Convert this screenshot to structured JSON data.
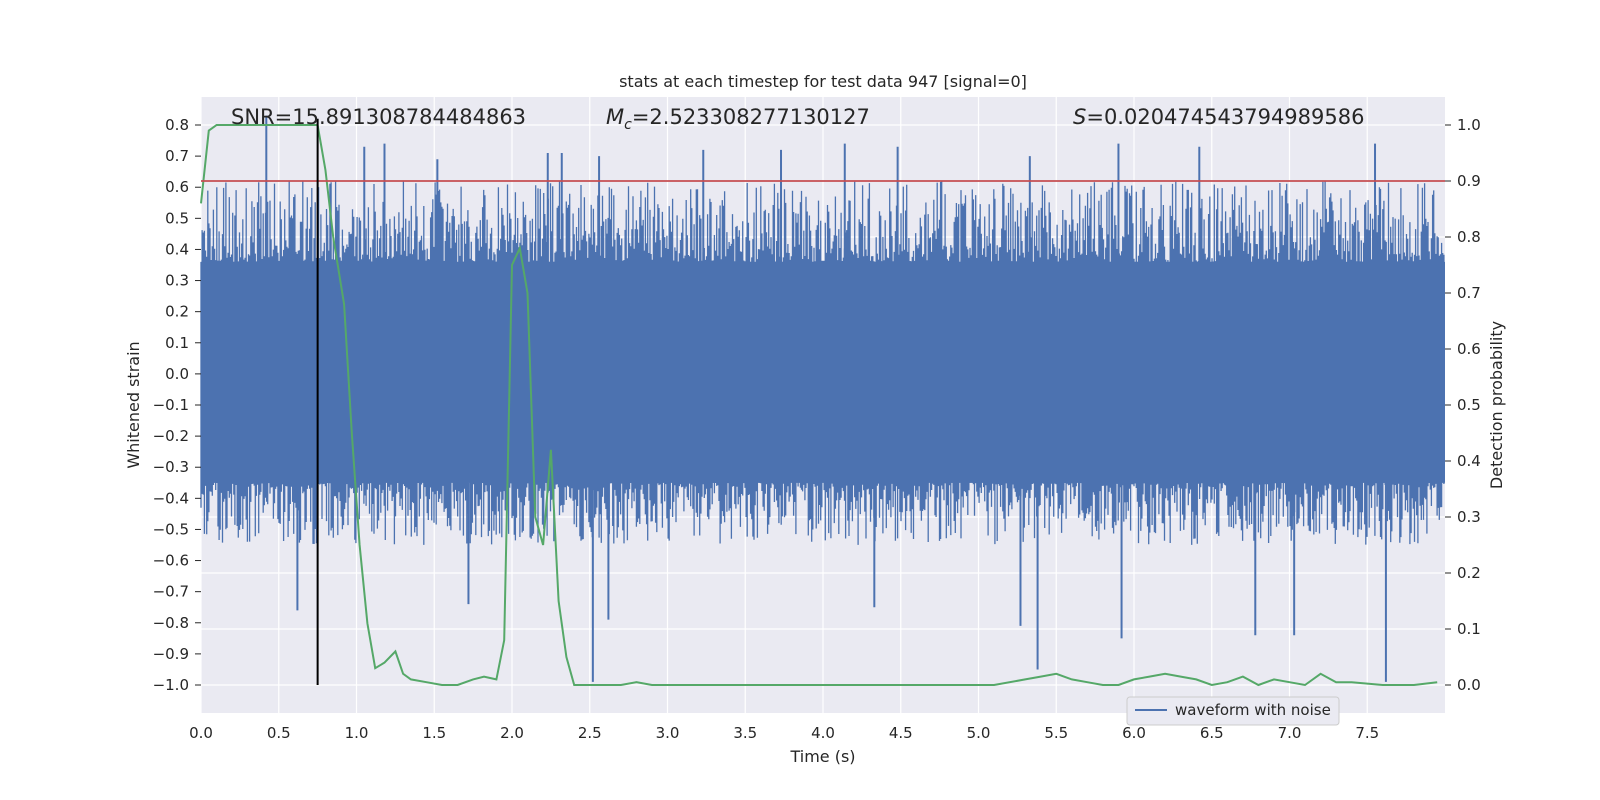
{
  "chart_data": {
    "type": "line",
    "title": "stats at each timestep for test data 947 [signal=0]",
    "xlabel": "Time (s)",
    "ylabel_left": "Whitened strain",
    "ylabel_right": "Detection probability",
    "xlim": [
      0.0,
      8.0
    ],
    "ylim_left": [
      -1.09,
      0.89
    ],
    "ylim_right": [
      -0.05,
      1.05
    ],
    "xticks": [
      "0.0",
      "0.5",
      "1.0",
      "1.5",
      "2.0",
      "2.5",
      "3.0",
      "3.5",
      "4.0",
      "4.5",
      "5.0",
      "5.5",
      "6.0",
      "6.5",
      "7.0",
      "7.5"
    ],
    "yticks_left": [
      "0.8",
      "0.7",
      "0.6",
      "0.5",
      "0.4",
      "0.3",
      "0.2",
      "0.1",
      "0.0",
      "−0.1",
      "−0.2",
      "−0.3",
      "−0.4",
      "−0.5",
      "−0.6",
      "−0.7",
      "−0.8",
      "−0.9",
      "−1.0"
    ],
    "yticks_right": [
      "1.0",
      "0.9",
      "0.8",
      "0.7",
      "0.6",
      "0.5",
      "0.4",
      "0.3",
      "0.2",
      "0.1",
      "0.0"
    ],
    "grid": true,
    "legend": {
      "position": "lower-right",
      "entries": [
        "waveform with noise"
      ]
    },
    "annotations": {
      "snr": "SNR=15.891308784484863",
      "mc_label": "M",
      "mc_sub": "c",
      "mc_value": "=2.523308277130127",
      "s_label": "S",
      "s_value": "=0.020474543794989586"
    },
    "threshold_right": 0.9,
    "marker_time": 0.75,
    "marker_range_left": [
      -1.0,
      0.82
    ],
    "waveform_band": {
      "core_range": [
        -0.35,
        0.36
      ],
      "typical_peak_range": [
        -0.55,
        0.62
      ]
    },
    "waveform_spikes": [
      {
        "x": 0.42,
        "y": 0.83
      },
      {
        "x": 1.05,
        "y": 0.73
      },
      {
        "x": 1.18,
        "y": 0.74
      },
      {
        "x": 1.52,
        "y": 0.69
      },
      {
        "x": 2.23,
        "y": 0.71
      },
      {
        "x": 2.32,
        "y": 0.71
      },
      {
        "x": 2.56,
        "y": 0.7
      },
      {
        "x": 3.23,
        "y": 0.72
      },
      {
        "x": 3.73,
        "y": 0.72
      },
      {
        "x": 4.14,
        "y": 0.74
      },
      {
        "x": 4.48,
        "y": 0.73
      },
      {
        "x": 5.33,
        "y": 0.7
      },
      {
        "x": 5.9,
        "y": 0.74
      },
      {
        "x": 6.42,
        "y": 0.73
      },
      {
        "x": 7.55,
        "y": 0.74
      },
      {
        "x": 0.62,
        "y": -0.76
      },
      {
        "x": 1.72,
        "y": -0.74
      },
      {
        "x": 2.52,
        "y": -0.99
      },
      {
        "x": 2.62,
        "y": -0.79
      },
      {
        "x": 4.33,
        "y": -0.75
      },
      {
        "x": 5.27,
        "y": -0.81
      },
      {
        "x": 5.38,
        "y": -0.95
      },
      {
        "x": 5.92,
        "y": -0.85
      },
      {
        "x": 6.78,
        "y": -0.84
      },
      {
        "x": 7.03,
        "y": -0.84
      },
      {
        "x": 7.62,
        "y": -0.99
      }
    ],
    "detection_probability": {
      "x": [
        0.0,
        0.05,
        0.1,
        0.2,
        0.35,
        0.5,
        0.65,
        0.75,
        0.8,
        0.85,
        0.92,
        0.97,
        1.02,
        1.07,
        1.12,
        1.18,
        1.25,
        1.3,
        1.35,
        1.45,
        1.55,
        1.65,
        1.75,
        1.82,
        1.9,
        1.95,
        2.0,
        2.05,
        2.1,
        2.15,
        2.2,
        2.25,
        2.3,
        2.35,
        2.4,
        2.45,
        2.5,
        2.6,
        2.7,
        2.8,
        2.9,
        3.0,
        3.2,
        3.4,
        3.6,
        3.8,
        4.0,
        4.2,
        4.4,
        4.6,
        4.8,
        5.0,
        5.1,
        5.3,
        5.4,
        5.5,
        5.6,
        5.7,
        5.8,
        5.9,
        6.0,
        6.1,
        6.2,
        6.3,
        6.4,
        6.5,
        6.6,
        6.7,
        6.8,
        6.9,
        7.0,
        7.1,
        7.2,
        7.3,
        7.4,
        7.6,
        7.8,
        7.95
      ],
      "y": [
        0.86,
        0.99,
        1.0,
        1.0,
        1.0,
        1.0,
        1.0,
        1.0,
        0.92,
        0.8,
        0.68,
        0.45,
        0.25,
        0.11,
        0.03,
        0.04,
        0.06,
        0.02,
        0.01,
        0.005,
        0.0,
        0.0,
        0.01,
        0.015,
        0.01,
        0.08,
        0.75,
        0.78,
        0.7,
        0.3,
        0.25,
        0.42,
        0.15,
        0.05,
        0.0,
        0.0,
        0.0,
        0.0,
        0.0,
        0.005,
        0.0,
        0.0,
        0.0,
        0.0,
        0.0,
        0.0,
        0.0,
        0.0,
        0.0,
        0.0,
        0.0,
        0.0,
        0.0,
        0.01,
        0.015,
        0.02,
        0.01,
        0.005,
        0.0,
        0.0,
        0.01,
        0.015,
        0.02,
        0.015,
        0.01,
        0.0,
        0.005,
        0.015,
        0.0,
        0.01,
        0.005,
        0.0,
        0.02,
        0.005,
        0.005,
        0.0,
        0.0,
        0.005
      ]
    },
    "colors": {
      "waveform": "#4c72b0",
      "probability": "#55a868",
      "threshold": "#c44e52",
      "marker": "#000000",
      "plot_background": "#eaeaf2",
      "grid": "#ffffff"
    }
  }
}
